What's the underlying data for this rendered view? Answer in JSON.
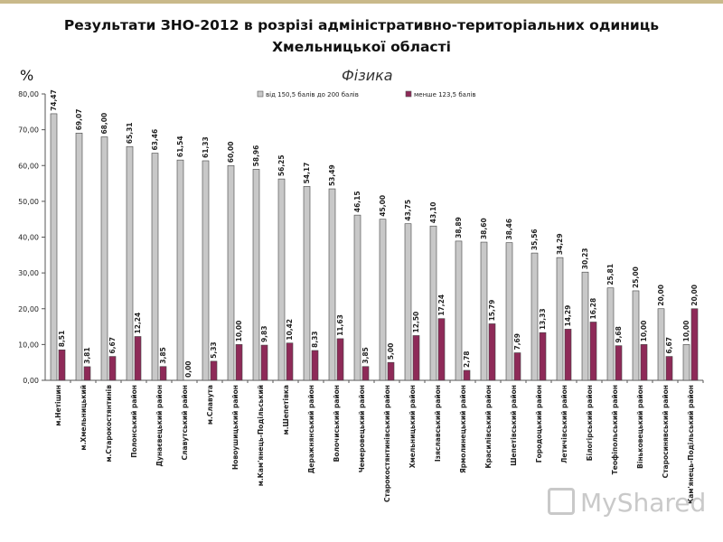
{
  "title_line1": "Результати ЗНО-2012 в розрізі адміністративно-територіальних одиниць",
  "title_line2": "Хмельницької області",
  "unit": "%",
  "subject": "Фізика",
  "logo_text": "MyShared",
  "colors": {
    "series1": "#c8c8c8",
    "series2": "#8e2a58"
  },
  "chart_data": {
    "type": "bar",
    "categories": [
      "м.Нетішин",
      "м.Хмельницький",
      "м.Старокостянтинів",
      "Полонський район",
      "Дунаєвецький район",
      "Славутський район",
      "м.Славута",
      "Новоушицький район",
      "м.Кам'янець-Подільський",
      "м.Шепетівка",
      "Деражнянський район",
      "Волочиський район",
      "Чемеровецький район",
      "Старокостянтинівський район",
      "Хмельницький район",
      "Ізяславський район",
      "Ярмолинецький район",
      "Красилівський район",
      "Шепетівський район",
      "Городоцький район",
      "Летичівський район",
      "Білогірський район",
      "Теофіпольський район",
      "Віньковецький район",
      "Старосинявський район",
      "Кам'янець-Подільський район"
    ],
    "series": [
      {
        "name": "від 150,5 балів до 200 балів",
        "values": [
          "74,47",
          "69,07",
          "68,00",
          "65,31",
          "63,46",
          "61,54",
          "61,33",
          "60,00",
          "58,96",
          "56,25",
          "54,17",
          "53,49",
          "46,15",
          "45,00",
          "43,75",
          "43,10",
          "38,89",
          "38,60",
          "38,46",
          "35,56",
          "34,29",
          "30,23",
          "25,81",
          "25,00",
          "20,00",
          "10,00"
        ]
      },
      {
        "name": "менше 123,5 балів",
        "values": [
          "8,51",
          "3,81",
          "6,67",
          "12,24",
          "3,85",
          "0,00",
          "5,33",
          "10,00",
          "9,83",
          "10,42",
          "8,33",
          "11,63",
          "3,85",
          "5,00",
          "12,50",
          "17,24",
          "2,78",
          "15,79",
          "7,69",
          "13,33",
          "14,29",
          "16,28",
          "9,68",
          "10,00",
          "6,67",
          "20,00"
        ]
      }
    ],
    "y_ticks": [
      "0,00",
      "10,00",
      "20,00",
      "30,00",
      "40,00",
      "50,00",
      "60,00",
      "70,00",
      "80,00"
    ],
    "ylim": [
      0,
      80
    ],
    "grid": false,
    "legend": "top"
  }
}
